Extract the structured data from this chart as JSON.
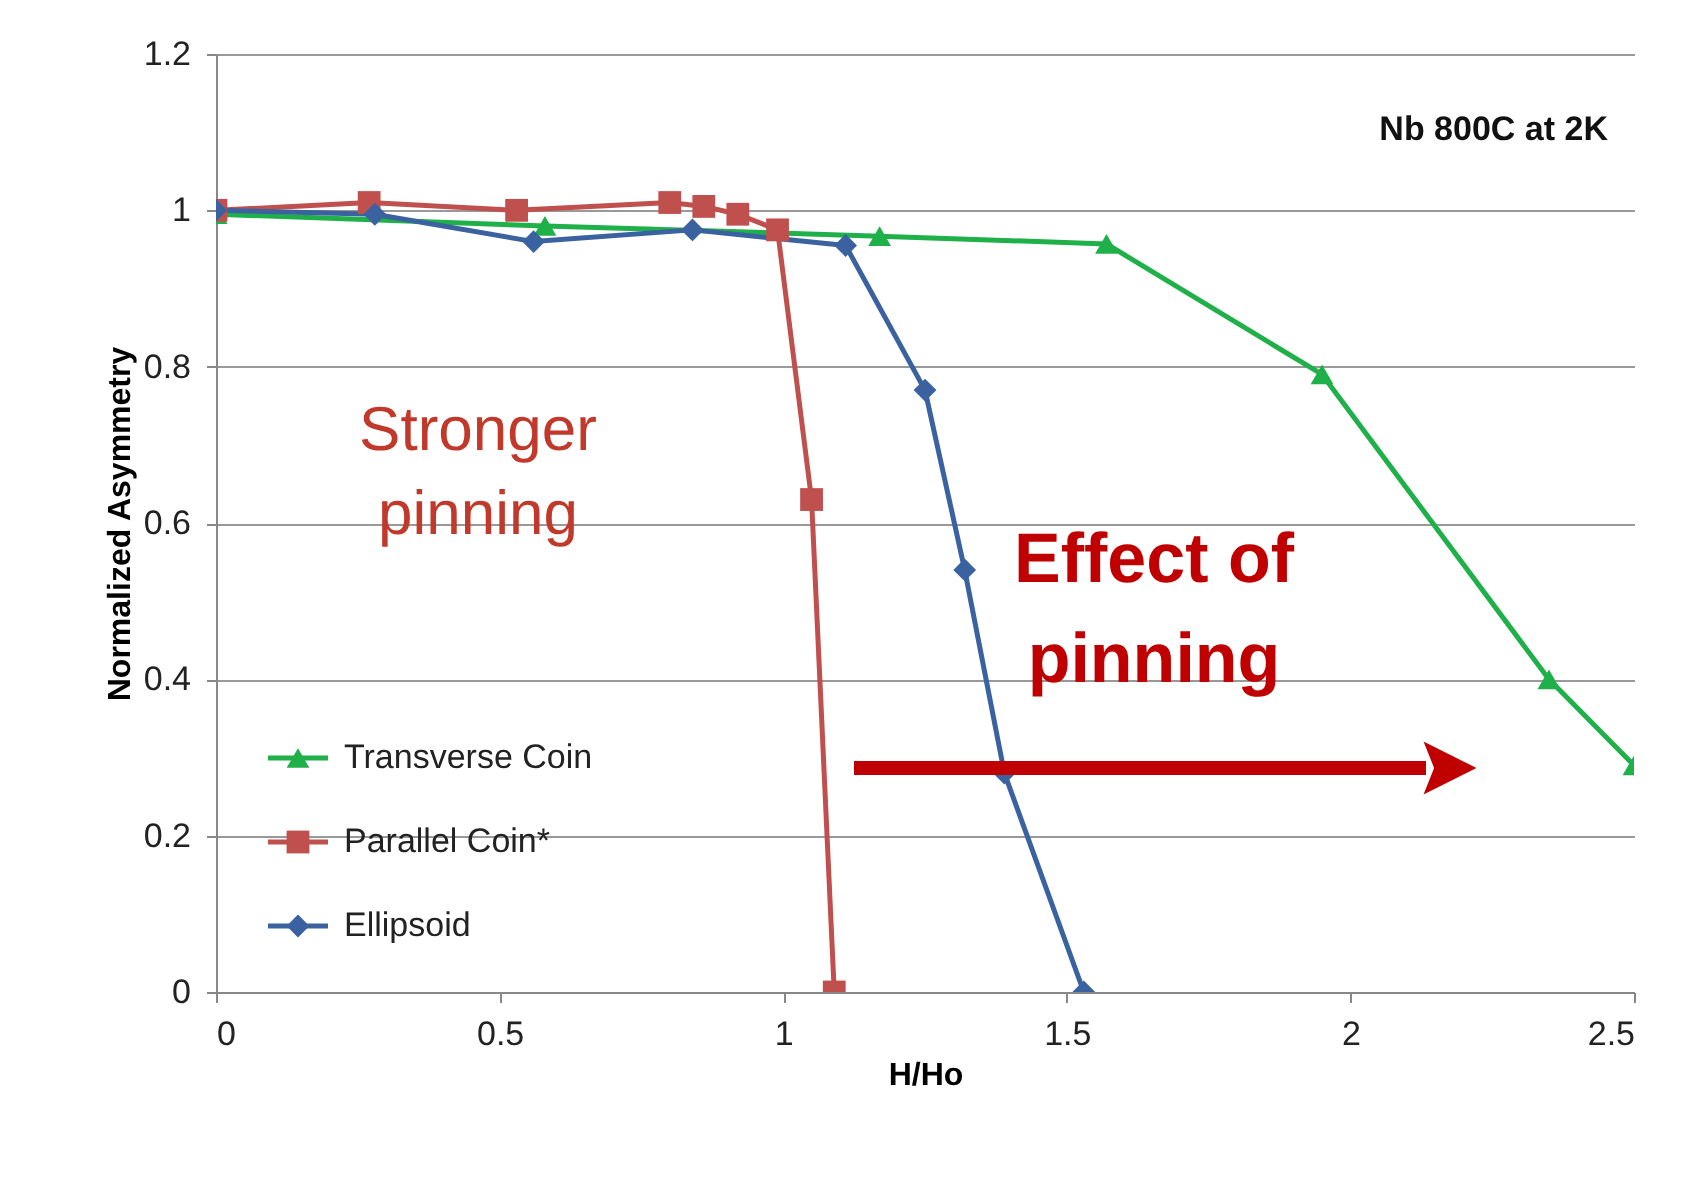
{
  "chart_data": {
    "type": "line",
    "xlabel": "H/Ho",
    "ylabel": "Normalized Asymmetry",
    "xlim": [
      0,
      2.5
    ],
    "xticks": [
      0,
      0.5,
      1,
      1.5,
      2,
      2.5
    ],
    "ylim": [
      0,
      1.2
    ],
    "yticks": [
      0,
      0.2,
      0.4,
      0.6,
      0.8,
      1,
      1.2
    ],
    "grid": "y",
    "legend": "bottom left",
    "series": [
      {
        "name": "Transverse Coin",
        "color": "#1fb04a",
        "marker": "triangle",
        "x": [
          0,
          0.58,
          1.17,
          1.57,
          1.95,
          2.35,
          2.5
        ],
        "values": [
          0.995,
          0.98,
          0.967,
          0.957,
          0.79,
          0.4,
          0.29
        ]
      },
      {
        "name": "Parallel Coin*",
        "color": "#c0504d",
        "marker": "square",
        "x": [
          0,
          0.27,
          0.53,
          0.8,
          0.86,
          0.92,
          0.99,
          1.05,
          1.09
        ],
        "values": [
          1.0,
          1.01,
          1.0,
          1.01,
          1.005,
          0.995,
          0.975,
          0.63,
          0.0
        ]
      },
      {
        "name": "Ellipsoid",
        "color": "#3a62a0",
        "marker": "diamond",
        "x": [
          0,
          0.28,
          0.56,
          0.84,
          1.11,
          1.25,
          1.32,
          1.39,
          1.53
        ],
        "values": [
          1.0,
          0.995,
          0.96,
          0.975,
          0.955,
          0.77,
          0.54,
          0.28,
          0.0
        ]
      }
    ],
    "annotations": [
      "Nb 800C at 2K",
      "Stronger pinning",
      "Effect of pinning"
    ]
  }
}
